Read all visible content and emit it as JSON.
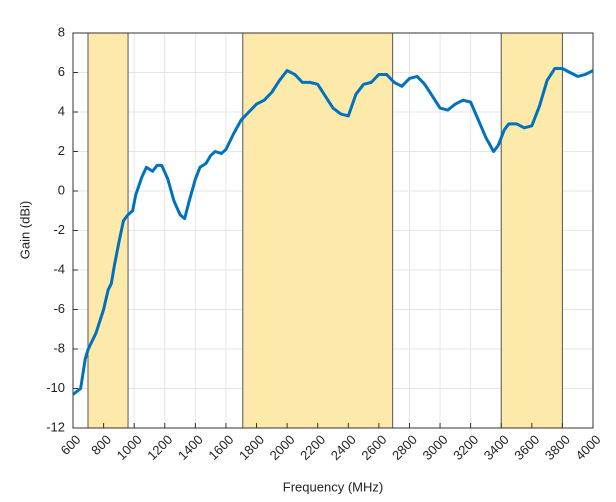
{
  "chart_data": {
    "type": "line",
    "xlabel": "Frequency (MHz)",
    "ylabel": "Gain (dBi)",
    "x": [
      600,
      650,
      680,
      700,
      750,
      800,
      830,
      850,
      870,
      900,
      930,
      960,
      990,
      1010,
      1050,
      1080,
      1120,
      1150,
      1180,
      1220,
      1260,
      1300,
      1330,
      1360,
      1400,
      1430,
      1470,
      1500,
      1530,
      1570,
      1600,
      1650,
      1700,
      1750,
      1800,
      1850,
      1900,
      1950,
      2000,
      2050,
      2100,
      2150,
      2200,
      2250,
      2300,
      2350,
      2400,
      2450,
      2500,
      2550,
      2600,
      2650,
      2700,
      2750,
      2800,
      2850,
      2900,
      2950,
      3000,
      3050,
      3100,
      3150,
      3200,
      3250,
      3300,
      3350,
      3380,
      3420,
      3450,
      3500,
      3550,
      3600,
      3650,
      3700,
      3750,
      3800,
      3850,
      3900,
      3950,
      4000
    ],
    "series": [
      {
        "color": "#0072bd",
        "values": [
          -10.3,
          -10.0,
          -8.5,
          -8.0,
          -7.2,
          -6.0,
          -5.0,
          -4.7,
          -3.8,
          -2.6,
          -1.5,
          -1.2,
          -1.0,
          -0.2,
          0.7,
          1.2,
          1.0,
          1.3,
          1.3,
          0.6,
          -0.5,
          -1.2,
          -1.4,
          -0.5,
          0.6,
          1.2,
          1.4,
          1.8,
          2.0,
          1.9,
          2.1,
          2.9,
          3.6,
          4.0,
          4.4,
          4.6,
          5.0,
          5.6,
          6.1,
          5.9,
          5.5,
          5.5,
          5.4,
          4.8,
          4.2,
          3.9,
          3.8,
          4.9,
          5.4,
          5.5,
          5.9,
          5.9,
          5.5,
          5.3,
          5.7,
          5.8,
          5.4,
          4.8,
          4.2,
          4.1,
          4.4,
          4.6,
          4.5,
          3.6,
          2.7,
          2.0,
          2.3,
          3.1,
          3.4,
          3.4,
          3.2,
          3.3,
          4.3,
          5.6,
          6.2,
          6.2,
          6.0,
          5.8,
          5.9,
          6.1
        ]
      }
    ],
    "bands": [
      [
        698,
        960
      ],
      [
        1710,
        2690
      ],
      [
        3400,
        3800
      ]
    ],
    "band_color": "#fde9a9",
    "xlim": [
      600,
      4000
    ],
    "xticks": [
      600,
      800,
      1000,
      1200,
      1400,
      1600,
      1800,
      2000,
      2200,
      2400,
      2600,
      2800,
      3000,
      3200,
      3400,
      3600,
      3800,
      4000
    ],
    "ylim": [
      -12,
      8
    ],
    "yticks": [
      -12,
      -10,
      -8,
      -6,
      -4,
      -2,
      0,
      2,
      4,
      6,
      8
    ],
    "grid": true
  }
}
